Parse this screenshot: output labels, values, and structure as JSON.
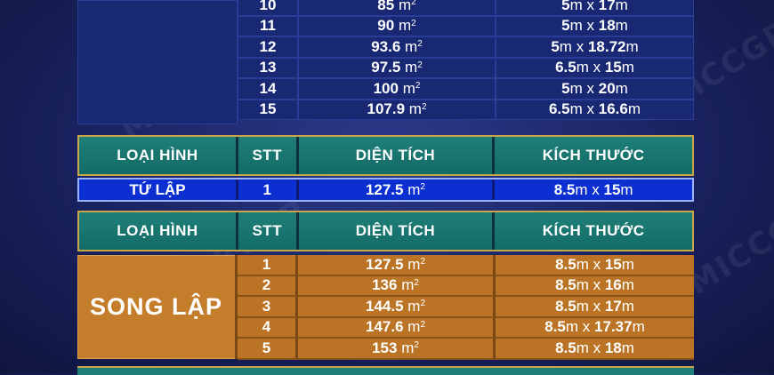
{
  "watermark": "MICCGROUP",
  "upper_rows": [
    {
      "stt": "10",
      "area": "85",
      "unit": "m",
      "dim_a": "5",
      "dim_b": "17"
    },
    {
      "stt": "11",
      "area": "90",
      "unit": "m",
      "dim_a": "5",
      "dim_b": "18"
    },
    {
      "stt": "12",
      "area": "93.6",
      "unit": "m",
      "dim_a": "5",
      "dim_b": "18.72"
    },
    {
      "stt": "13",
      "area": "97.5",
      "unit": "m",
      "dim_a": "6.5",
      "dim_b": "15"
    },
    {
      "stt": "14",
      "area": "100",
      "unit": "m",
      "dim_a": "5",
      "dim_b": "20"
    },
    {
      "stt": "15",
      "area": "107.9",
      "unit": "m",
      "dim_a": "6.5",
      "dim_b": "16.6"
    }
  ],
  "headers": {
    "type": "LOẠI HÌNH",
    "stt": "STT",
    "area": "DIỆN TÍCH",
    "dimension": "KÍCH THƯỚC"
  },
  "tu_lap": {
    "label": "TỨ LẬP",
    "rows": [
      {
        "stt": "1",
        "area": "127.5",
        "unit": "m",
        "dim_a": "8.5",
        "dim_b": "15"
      }
    ]
  },
  "song_lap": {
    "label": "SONG LẬP",
    "rows": [
      {
        "stt": "1",
        "area": "127.5",
        "unit": "m",
        "dim_a": "8.5",
        "dim_b": "15"
      },
      {
        "stt": "2",
        "area": "136",
        "unit": "m",
        "dim_a": "8.5",
        "dim_b": "16"
      },
      {
        "stt": "3",
        "area": "144.5",
        "unit": "m",
        "dim_a": "8.5",
        "dim_b": "17"
      },
      {
        "stt": "4",
        "area": "147.6",
        "unit": "m",
        "dim_a": "8.5",
        "dim_b": "17.37"
      },
      {
        "stt": "5",
        "area": "153",
        "unit": "m",
        "dim_a": "8.5",
        "dim_b": "18"
      }
    ]
  },
  "sup": "2",
  "unit_m": "m",
  "times": "x",
  "colors": {
    "background": "#1a2260",
    "row_blue": "#182873",
    "header_teal": "#1f7f78",
    "tu_lap_blue": "#0c2fd1",
    "song_lap_orange": "#bb7425",
    "border_gold": "#c8a64a"
  }
}
